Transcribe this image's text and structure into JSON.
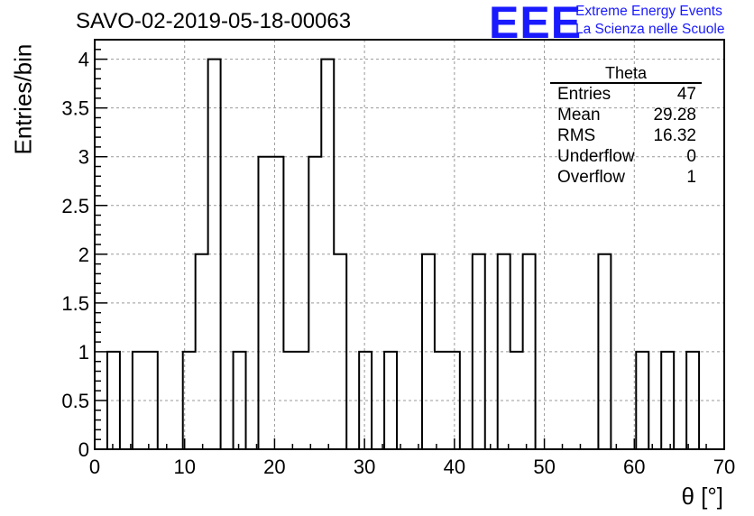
{
  "header": {
    "title": "SAVO-02-2019-05-18-00063",
    "logo_mark": "EEE",
    "logo_line1": "Extreme Energy Events",
    "logo_line2": "La Scienza nelle Scuole",
    "logo_color": "#1a1aff"
  },
  "stats": {
    "name": "Theta",
    "rows": [
      {
        "label": "Entries",
        "value": "47"
      },
      {
        "label": "Mean",
        "value": "29.28"
      },
      {
        "label": "RMS",
        "value": "16.32"
      },
      {
        "label": "Underflow",
        "value": "0"
      },
      {
        "label": "Overflow",
        "value": "1"
      }
    ]
  },
  "chart_data": {
    "type": "histogram",
    "xlabel": "θ [°]",
    "ylabel": "Entries/bin",
    "xlim": [
      0,
      70
    ],
    "ylim": [
      0,
      4.2
    ],
    "grid": true,
    "x_ticks": [
      0,
      10,
      20,
      30,
      40,
      50,
      60,
      70
    ],
    "y_ticks": [
      "0",
      "0.5",
      "1",
      "1.5",
      "2",
      "2.5",
      "3",
      "3.5",
      "4"
    ],
    "bin_width": 1.4,
    "bin_start": 0,
    "values": [
      0,
      1,
      0,
      1,
      1,
      0,
      0,
      1,
      2,
      4,
      0,
      1,
      0,
      3,
      3,
      1,
      1,
      3,
      4,
      2,
      0,
      1,
      0,
      1,
      0,
      0,
      2,
      1,
      1,
      0,
      2,
      0,
      2,
      1,
      2,
      0,
      0,
      0,
      0,
      0,
      2,
      0,
      0,
      1,
      0,
      1,
      0,
      1,
      0,
      0
    ]
  }
}
